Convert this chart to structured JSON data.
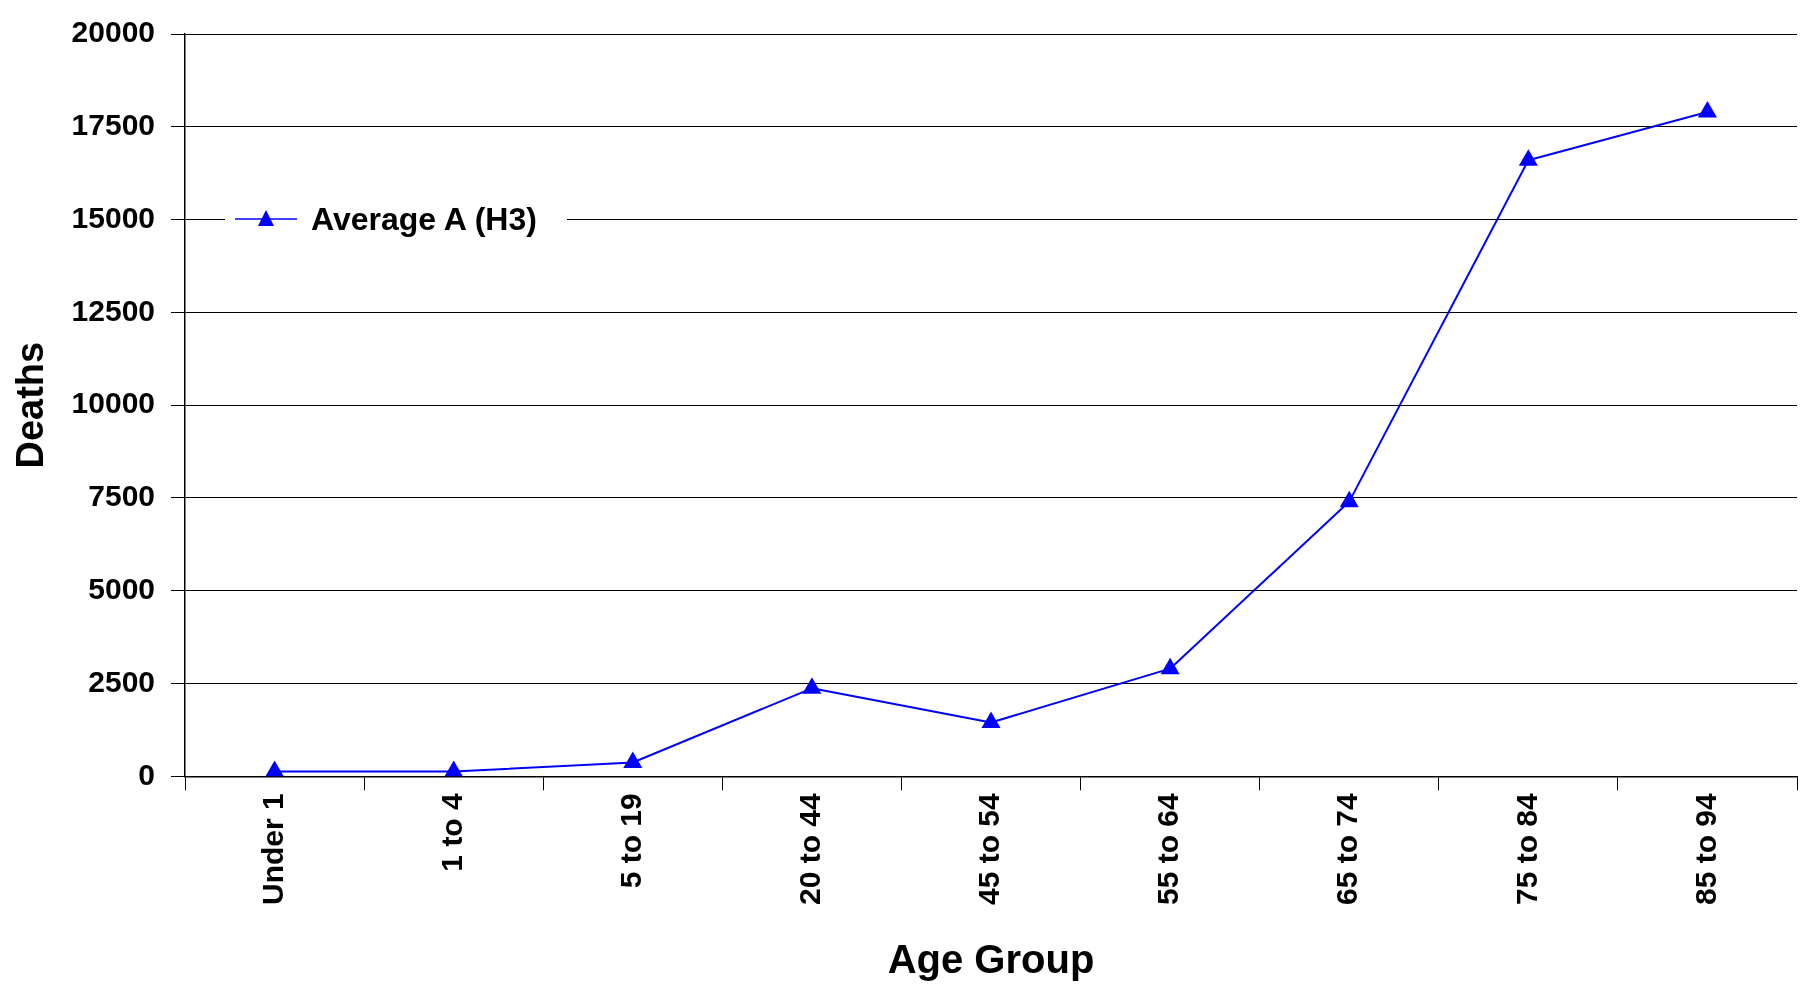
{
  "chart_data": {
    "type": "line",
    "xlabel": "Age Group",
    "ylabel": "Deaths",
    "categories": [
      "Under 1",
      "1 to 4",
      "5 to 19",
      "20 to 44",
      "45 to 54",
      "55 to 64",
      "65 to 74",
      "75 to 84",
      "85 to 94"
    ],
    "series": [
      {
        "name": "Average A (H3)",
        "color": "#0000ff",
        "values": [
          130,
          130,
          370,
          2370,
          1450,
          2900,
          7400,
          16600,
          17900
        ]
      }
    ],
    "ylim": [
      0,
      20000
    ],
    "yticks": [
      0,
      2500,
      5000,
      7500,
      10000,
      12500,
      15000,
      17500,
      20000
    ],
    "grid": "y",
    "legend": "top left",
    "marker": "triangle",
    "line_style": "solid"
  }
}
